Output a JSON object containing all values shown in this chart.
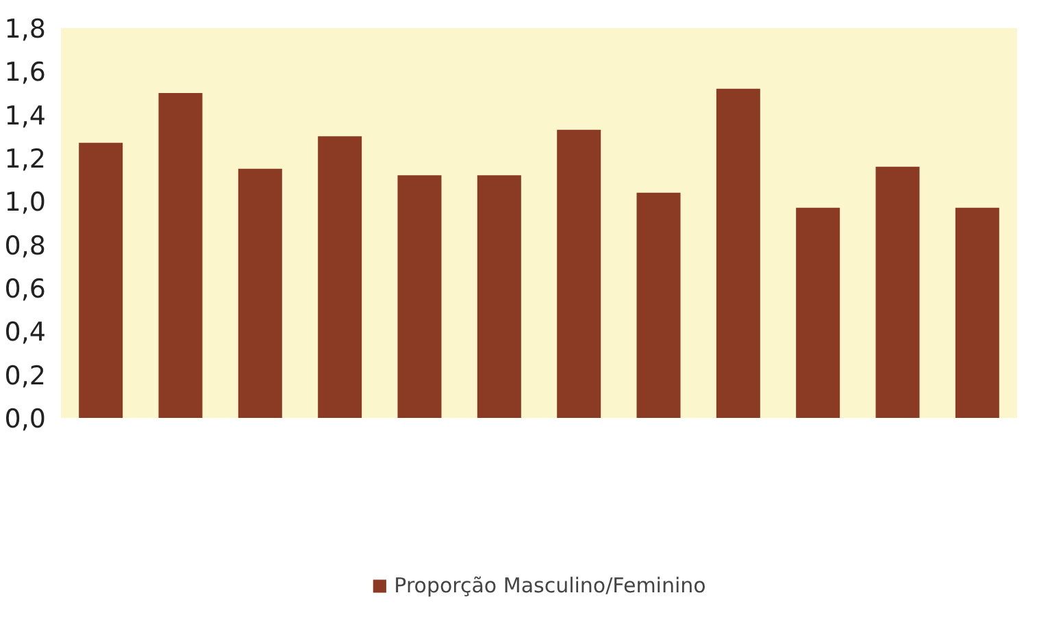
{
  "chart_data": {
    "type": "bar",
    "categories": [
      null,
      null,
      null,
      null,
      null,
      null,
      null,
      null,
      null,
      null,
      null,
      null
    ],
    "series": [
      {
        "name": "Proporção Masculino/Feminino",
        "color": "#8b3a24",
        "values": [
          1.27,
          1.5,
          1.15,
          1.3,
          1.12,
          1.12,
          1.33,
          1.04,
          1.52,
          0.97,
          1.16,
          0.97
        ]
      }
    ],
    "ylim": [
      0,
      1.8
    ],
    "yticks": [
      {
        "value": 0,
        "label": "0,0"
      },
      {
        "value": 0.2,
        "label": "0,2"
      },
      {
        "value": 0.4,
        "label": "0,4"
      },
      {
        "value": 0.6,
        "label": "0,6"
      },
      {
        "value": 0.8,
        "label": "0,8"
      },
      {
        "value": 1.0,
        "label": "1,0"
      },
      {
        "value": 1.2,
        "label": "1,2"
      },
      {
        "value": 1.4,
        "label": "1,4"
      },
      {
        "value": 1.6,
        "label": "1,6"
      },
      {
        "value": 1.8,
        "label": "1,8"
      }
    ],
    "grid": false,
    "legend": "bottom"
  }
}
